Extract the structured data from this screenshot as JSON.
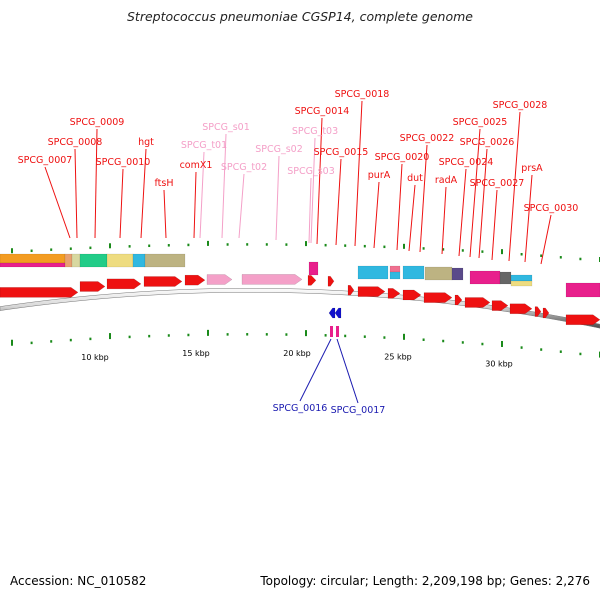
{
  "title": "Streptococcus pneumoniae CGSP14, complete genome",
  "footer": {
    "accession_label": "Accession:",
    "accession": "NC_010582",
    "topology_label": "Topology:",
    "topology": "circular",
    "length_label": "Length:",
    "length": "2,209,198 bp",
    "genes_label": "Genes:",
    "genes": "2,276"
  },
  "colors": {
    "forward_gene": "#ee1111",
    "rna_gene": "#f4a0c8",
    "reverse_gene": "#1111cc",
    "reverse_label": "#1a1ab0",
    "magenta": "#e8208c",
    "cyan": "#30b8e0",
    "kbp_tick": "#1a8a1a"
  },
  "scale_labels": [
    {
      "label": "10 kbp",
      "kbp": 10
    },
    {
      "label": "15 kbp",
      "kbp": 15
    },
    {
      "label": "20 kbp",
      "kbp": 20
    },
    {
      "label": "25 kbp",
      "kbp": 25
    },
    {
      "label": "30 kbp",
      "kbp": 30
    }
  ],
  "gene_labels_top": [
    {
      "name": "SPCG_0007",
      "type": "cds"
    },
    {
      "name": "SPCG_0008",
      "type": "cds"
    },
    {
      "name": "SPCG_0009",
      "type": "cds"
    },
    {
      "name": "SPCG_0010",
      "type": "cds"
    },
    {
      "name": "hgt",
      "type": "cds"
    },
    {
      "name": "ftsH",
      "type": "cds"
    },
    {
      "name": "comX1",
      "type": "cds"
    },
    {
      "name": "SPCG_t01",
      "type": "rna"
    },
    {
      "name": "SPCG_s01",
      "type": "rna"
    },
    {
      "name": "SPCG_t02",
      "type": "rna"
    },
    {
      "name": "SPCG_s02",
      "type": "rna"
    },
    {
      "name": "SPCG_s03",
      "type": "rna"
    },
    {
      "name": "SPCG_t03",
      "type": "rna"
    },
    {
      "name": "SPCG_0014",
      "type": "cds"
    },
    {
      "name": "SPCG_0015",
      "type": "cds"
    },
    {
      "name": "SPCG_0018",
      "type": "cds"
    },
    {
      "name": "purA",
      "type": "cds"
    },
    {
      "name": "SPCG_0020",
      "type": "cds"
    },
    {
      "name": "dut",
      "type": "cds"
    },
    {
      "name": "SPCG_0022",
      "type": "cds"
    },
    {
      "name": "radA",
      "type": "cds"
    },
    {
      "name": "SPCG_0024",
      "type": "cds"
    },
    {
      "name": "SPCG_0025",
      "type": "cds"
    },
    {
      "name": "SPCG_0026",
      "type": "cds"
    },
    {
      "name": "SPCG_0027",
      "type": "cds"
    },
    {
      "name": "SPCG_0028",
      "type": "cds"
    },
    {
      "name": "prsA",
      "type": "cds"
    },
    {
      "name": "SPCG_0030",
      "type": "cds"
    }
  ],
  "gene_labels_bottom": [
    {
      "name": "SPCG_0016",
      "type": "reverse"
    },
    {
      "name": "SPCG_0017",
      "type": "reverse"
    }
  ]
}
